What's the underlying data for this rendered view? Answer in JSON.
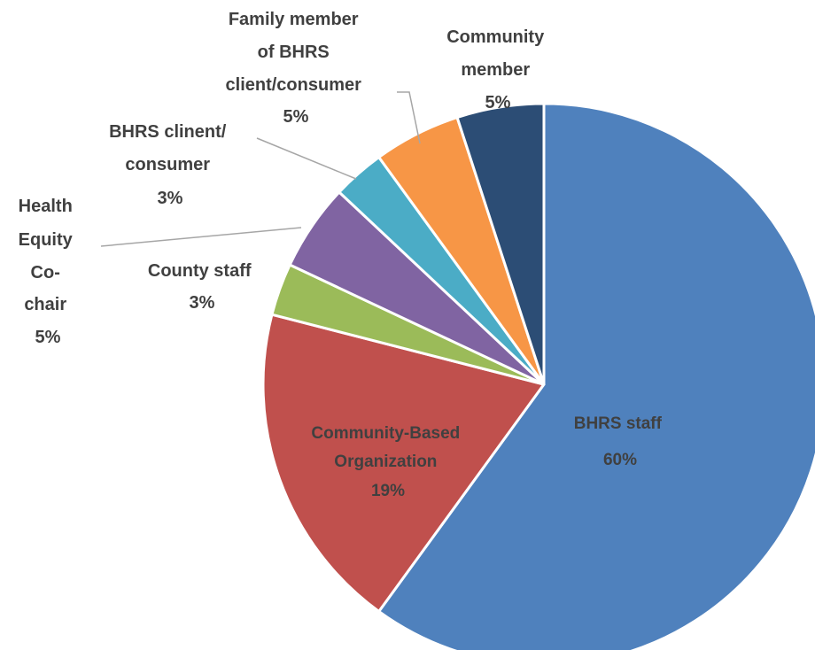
{
  "chart_data": {
    "type": "pie",
    "start_angle_deg": 0,
    "direction": "clockwise",
    "slices": [
      {
        "name": "BHRS staff",
        "value": 60,
        "percent_label": "60%",
        "color": "#4F81BD"
      },
      {
        "name": "Community-Based Organization",
        "value": 19,
        "percent_label": "19%",
        "color": "#C0504D"
      },
      {
        "name": "County staff",
        "value": 3,
        "percent_label": "3%",
        "color": "#9BBB59"
      },
      {
        "name": "Health Equity Co-chair",
        "value": 5,
        "percent_label": "5%",
        "color": "#8064A2"
      },
      {
        "name": "BHRS clinent/ consumer",
        "value": 3,
        "percent_label": "3%",
        "color": "#4BACC6"
      },
      {
        "name": "Family member of BHRS client/consumer",
        "value": 5,
        "percent_label": "5%",
        "color": "#F79646"
      },
      {
        "name": "Community member",
        "value": 5,
        "percent_label": "5%",
        "color": "#2C4D75"
      }
    ],
    "labels": {
      "bhrs_staff": {
        "lines": [
          "BHRS staff",
          "60%"
        ]
      },
      "cbo": {
        "lines": [
          "Community-Based",
          "Organization",
          "19%"
        ]
      },
      "county_staff": {
        "lines": [
          "County staff",
          "3%"
        ]
      },
      "health_equity": {
        "lines": [
          "Health",
          "Equity",
          "Co-",
          "chair",
          "5%"
        ]
      },
      "bhrs_client": {
        "lines": [
          "BHRS clinent/",
          "consumer",
          "3%"
        ]
      },
      "family_member": {
        "lines": [
          "Family member",
          "of BHRS",
          "client/consumer",
          "5%"
        ]
      },
      "community_member": {
        "lines": [
          "Community",
          "member",
          "5%"
        ]
      }
    }
  }
}
